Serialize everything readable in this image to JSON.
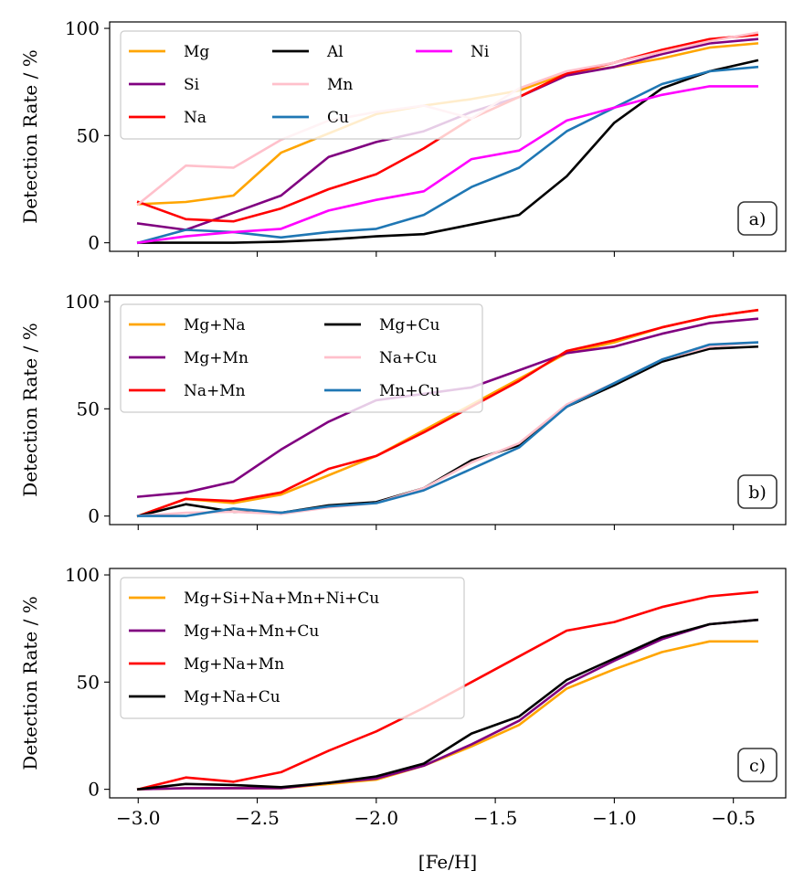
{
  "figure": {
    "xlabel": "[Fe/H]"
  },
  "chart_data": [
    {
      "type": "line",
      "panel_label": "a)",
      "ylabel": "Detection Rate / %",
      "xlim": [
        -3.12,
        -0.28
      ],
      "ylim": [
        -4,
        103
      ],
      "xticks": [
        -3.0,
        -2.5,
        -2.0,
        -1.5,
        -1.0,
        -0.5
      ],
      "xtick_labels": [
        "−3.0",
        "−2.5",
        "−2.0",
        "−1.5",
        "−1.0",
        "−0.5"
      ],
      "yticks": [
        0,
        50,
        100
      ],
      "ytick_labels": [
        "0",
        "50",
        "100"
      ],
      "show_xtick_labels": false,
      "legend_position": "upper-left",
      "legend_columns": 3,
      "x": [
        -3.0,
        -2.8,
        -2.6,
        -2.4,
        -2.2,
        -2.0,
        -1.8,
        -1.6,
        -1.4,
        -1.2,
        -1.0,
        -0.8,
        -0.6,
        -0.4
      ],
      "series": [
        {
          "name": "Mg",
          "color": "#ffa500",
          "values": [
            18,
            19,
            22,
            42,
            51,
            60,
            64,
            67,
            71,
            79,
            82,
            86,
            91,
            93
          ]
        },
        {
          "name": "Si",
          "color": "#800080",
          "values": [
            9,
            6,
            14,
            22,
            40,
            47,
            52,
            61,
            68,
            78,
            82,
            88,
            93,
            95
          ]
        },
        {
          "name": "Na",
          "color": "#ff0000",
          "values": [
            19,
            11,
            10,
            16,
            25,
            32,
            44,
            58,
            68,
            79,
            84,
            90,
            95,
            97
          ]
        },
        {
          "name": "Al",
          "color": "#000000",
          "values": [
            0,
            0,
            0,
            0.5,
            1.5,
            3,
            4,
            8.5,
            13,
            31,
            56,
            72,
            80,
            85
          ]
        },
        {
          "name": "Mn",
          "color": "#ffc0cb",
          "values": [
            18,
            36,
            35,
            48,
            57,
            61,
            64,
            58,
            72,
            80,
            84,
            89,
            94,
            98
          ]
        },
        {
          "name": "Cu",
          "color": "#1f77b4",
          "values": [
            0,
            6,
            5,
            2.5,
            5,
            6.5,
            13,
            26,
            35,
            52,
            63,
            74,
            80,
            82
          ]
        },
        {
          "name": "Ni",
          "color": "#ff00ff",
          "values": [
            0,
            3,
            5,
            6.5,
            15,
            20,
            24,
            39,
            43,
            57,
            63,
            69,
            73,
            73
          ]
        }
      ]
    },
    {
      "type": "line",
      "panel_label": "b)",
      "ylabel": "Detection Rate / %",
      "xlim": [
        -3.12,
        -0.28
      ],
      "ylim": [
        -4,
        103
      ],
      "xticks": [
        -3.0,
        -2.5,
        -2.0,
        -1.5,
        -1.0,
        -0.5
      ],
      "xtick_labels": [
        "−3.0",
        "−2.5",
        "−2.0",
        "−1.5",
        "−1.0",
        "−0.5"
      ],
      "yticks": [
        0,
        50,
        100
      ],
      "ytick_labels": [
        "0",
        "50",
        "100"
      ],
      "show_xtick_labels": false,
      "legend_position": "upper-left",
      "legend_columns": 2,
      "x": [
        -3.0,
        -2.8,
        -2.6,
        -2.4,
        -2.2,
        -2.0,
        -1.8,
        -1.6,
        -1.4,
        -1.2,
        -1.0,
        -0.8,
        -0.6,
        -0.4
      ],
      "series": [
        {
          "name": "Mg+Na",
          "color": "#ffa500",
          "values": [
            0,
            8,
            6,
            10,
            19,
            28,
            40,
            52,
            64,
            76,
            81,
            88,
            93,
            96
          ]
        },
        {
          "name": "Mg+Mn",
          "color": "#800080",
          "values": [
            9,
            11,
            16,
            31,
            44,
            54,
            57,
            60,
            68,
            76,
            79,
            85,
            90,
            92
          ]
        },
        {
          "name": "Na+Mn",
          "color": "#ff0000",
          "values": [
            0,
            8,
            7,
            11,
            22,
            28,
            39,
            51,
            63,
            77,
            82,
            88,
            93,
            96
          ]
        },
        {
          "name": "Mg+Cu",
          "color": "#000000",
          "values": [
            0,
            5.5,
            2,
            1.5,
            5,
            6.5,
            13,
            26,
            33,
            51,
            61,
            72,
            78,
            79
          ]
        },
        {
          "name": "Na+Cu",
          "color": "#ffc0cb",
          "values": [
            0,
            1.5,
            2,
            1,
            4,
            6,
            13,
            25,
            34,
            52,
            62,
            73,
            79,
            81
          ]
        },
        {
          "name": "Mn+Cu",
          "color": "#1f77b4",
          "values": [
            0,
            0,
            3.5,
            1.5,
            4.5,
            6,
            12,
            22,
            32,
            51,
            62,
            73,
            80,
            81
          ]
        }
      ]
    },
    {
      "type": "line",
      "panel_label": "c)",
      "ylabel": "Detection Rate / %",
      "xlim": [
        -3.12,
        -0.28
      ],
      "ylim": [
        -4,
        103
      ],
      "xticks": [
        -3.0,
        -2.5,
        -2.0,
        -1.5,
        -1.0,
        -0.5
      ],
      "xtick_labels": [
        "−3.0",
        "−2.5",
        "−2.0",
        "−1.5",
        "−1.0",
        "−0.5"
      ],
      "yticks": [
        0,
        50,
        100
      ],
      "ytick_labels": [
        "0",
        "50",
        "100"
      ],
      "show_xtick_labels": true,
      "legend_position": "upper-left",
      "legend_columns": 1,
      "x": [
        -3.0,
        -2.8,
        -2.6,
        -2.4,
        -2.2,
        -2.0,
        -1.8,
        -1.6,
        -1.4,
        -1.2,
        -1.0,
        -0.8,
        -0.6,
        -0.4
      ],
      "series": [
        {
          "name": "Mg+Si+Na+Mn+Ni+Cu",
          "color": "#ffa500",
          "values": [
            0,
            0.5,
            0.5,
            0.5,
            2.5,
            4.5,
            11,
            20,
            30,
            47,
            56,
            64,
            69,
            69
          ]
        },
        {
          "name": "Mg+Na+Mn+Cu",
          "color": "#800080",
          "values": [
            0,
            0.5,
            0.5,
            0.5,
            3,
            5,
            11,
            21,
            32,
            49,
            60,
            70,
            77,
            79
          ]
        },
        {
          "name": "Mg+Na+Mn",
          "color": "#ff0000",
          "values": [
            0,
            5.5,
            3.5,
            8,
            18,
            27,
            38,
            50,
            62,
            74,
            78,
            85,
            90,
            92
          ]
        },
        {
          "name": "Mg+Na+Cu",
          "color": "#000000",
          "values": [
            0,
            2.5,
            2,
            1,
            3,
            6,
            12,
            26,
            34,
            51,
            61,
            71,
            77,
            79
          ]
        }
      ]
    }
  ]
}
